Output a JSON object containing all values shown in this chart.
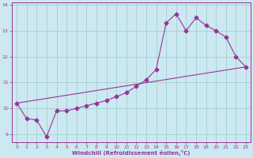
{
  "xlabel": "Windchill (Refroidissement éolien,°C)",
  "bg_color": "#cce8f0",
  "line_color": "#993399",
  "grid_color": "#99cccc",
  "xlim": [
    -0.5,
    23.5
  ],
  "ylim": [
    8.7,
    14.1
  ],
  "xticks": [
    0,
    1,
    2,
    3,
    4,
    5,
    6,
    7,
    8,
    9,
    10,
    11,
    12,
    13,
    14,
    15,
    16,
    17,
    18,
    19,
    20,
    21,
    22,
    23
  ],
  "yticks": [
    9,
    10,
    11,
    12,
    13,
    14
  ],
  "series1_x": [
    0,
    1,
    2,
    3,
    4,
    5,
    6,
    7,
    8,
    9,
    10,
    11,
    12,
    13,
    14,
    15,
    16,
    17,
    18,
    19,
    20,
    21,
    22,
    23
  ],
  "series1_y": [
    10.2,
    9.6,
    9.55,
    8.9,
    9.9,
    9.9,
    10.0,
    10.1,
    10.2,
    10.3,
    10.45,
    10.6,
    10.85,
    11.1,
    11.5,
    13.3,
    13.65,
    13.0,
    13.5,
    13.2,
    13.0,
    12.75,
    12.0,
    11.6
  ],
  "series2_x": [
    0,
    23
  ],
  "series2_y": [
    10.2,
    11.6
  ],
  "marker": "D",
  "markersize": 2.5,
  "linewidth": 0.8
}
